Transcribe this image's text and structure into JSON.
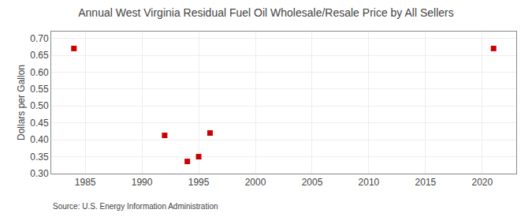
{
  "chart_data": {
    "type": "scatter",
    "title": "Annual West Virginia Residual Fuel Oil Wholesale/Resale Price by All Sellers",
    "ylabel": "Dollars per Gallon",
    "annotations": [
      "Source: U.S. Energy Information Administration"
    ],
    "x": [
      1984,
      1992,
      1994,
      1995,
      1996,
      2021
    ],
    "values": [
      0.67,
      0.413,
      0.336,
      0.35,
      0.42,
      0.67
    ],
    "color": "#cc0000",
    "marker": "square",
    "xlim": [
      1982,
      2023
    ],
    "ylim": [
      0.3,
      0.72
    ],
    "xticks": [
      1985,
      1990,
      1995,
      2000,
      2005,
      2010,
      2015,
      2020
    ],
    "yticks": [
      {
        "value": 0.3,
        "label": "0.30"
      },
      0.35,
      {
        "value": 0.4,
        "label": "0.40"
      },
      0.45,
      {
        "value": 0.5,
        "label": "0.50"
      },
      0.55,
      {
        "value": 0.6,
        "label": "0.60"
      },
      0.65,
      {
        "value": 0.7,
        "label": "0.70"
      }
    ],
    "grid": true
  }
}
